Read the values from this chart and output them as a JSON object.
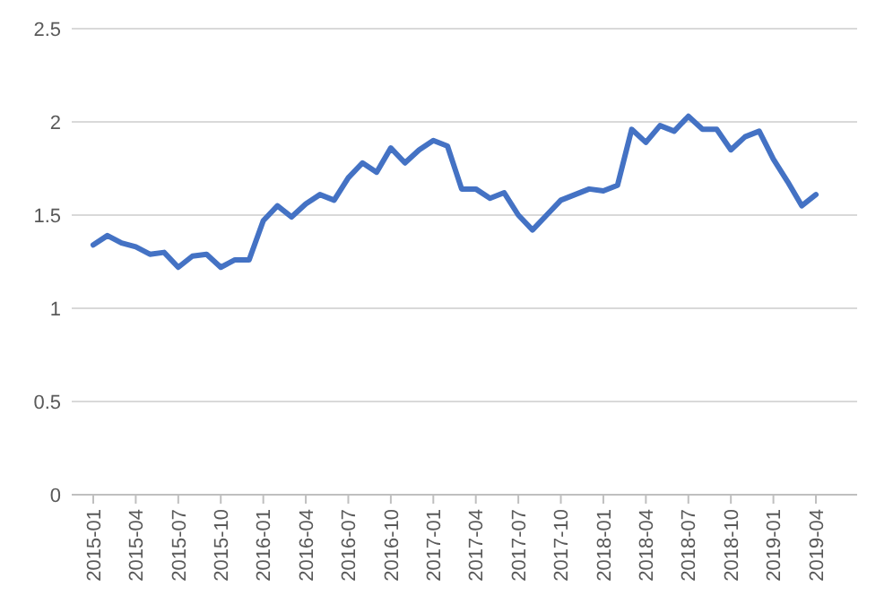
{
  "chart_data": {
    "type": "line",
    "categories": [
      "2015-01",
      null,
      null,
      "2015-04",
      null,
      null,
      "2015-07",
      null,
      null,
      "2015-10",
      null,
      null,
      "2016-01",
      null,
      null,
      "2016-04",
      null,
      null,
      "2016-07",
      null,
      null,
      "2016-10",
      null,
      null,
      "2017-01",
      null,
      null,
      "2017-04",
      null,
      null,
      "2017-07",
      null,
      null,
      "2017-10",
      null,
      null,
      "2018-01",
      null,
      null,
      "2018-04",
      null,
      null,
      "2018-07",
      null,
      null,
      "2018-10",
      null,
      null,
      "2019-01",
      null,
      null,
      "2019-04"
    ],
    "series": [
      {
        "color": "#4472c4",
        "values": [
          1.34,
          1.39,
          1.35,
          1.33,
          1.29,
          1.3,
          1.22,
          1.28,
          1.29,
          1.22,
          1.26,
          1.26,
          1.47,
          1.55,
          1.49,
          1.56,
          1.61,
          1.58,
          1.7,
          1.78,
          1.73,
          1.86,
          1.78,
          1.85,
          1.9,
          1.87,
          1.64,
          1.64,
          1.59,
          1.62,
          1.5,
          1.42,
          1.5,
          1.58,
          1.61,
          1.64,
          1.63,
          1.66,
          1.96,
          1.89,
          1.98,
          1.95,
          2.03,
          1.96,
          1.96,
          1.85,
          1.92,
          1.95,
          1.8,
          1.68,
          1.55,
          1.61
        ]
      }
    ],
    "ylim": [
      0,
      2.5
    ],
    "yticks": [
      0,
      0.5,
      1,
      1.5,
      2,
      2.5
    ],
    "grid": "y",
    "marker": "none",
    "line_style": "solid"
  }
}
